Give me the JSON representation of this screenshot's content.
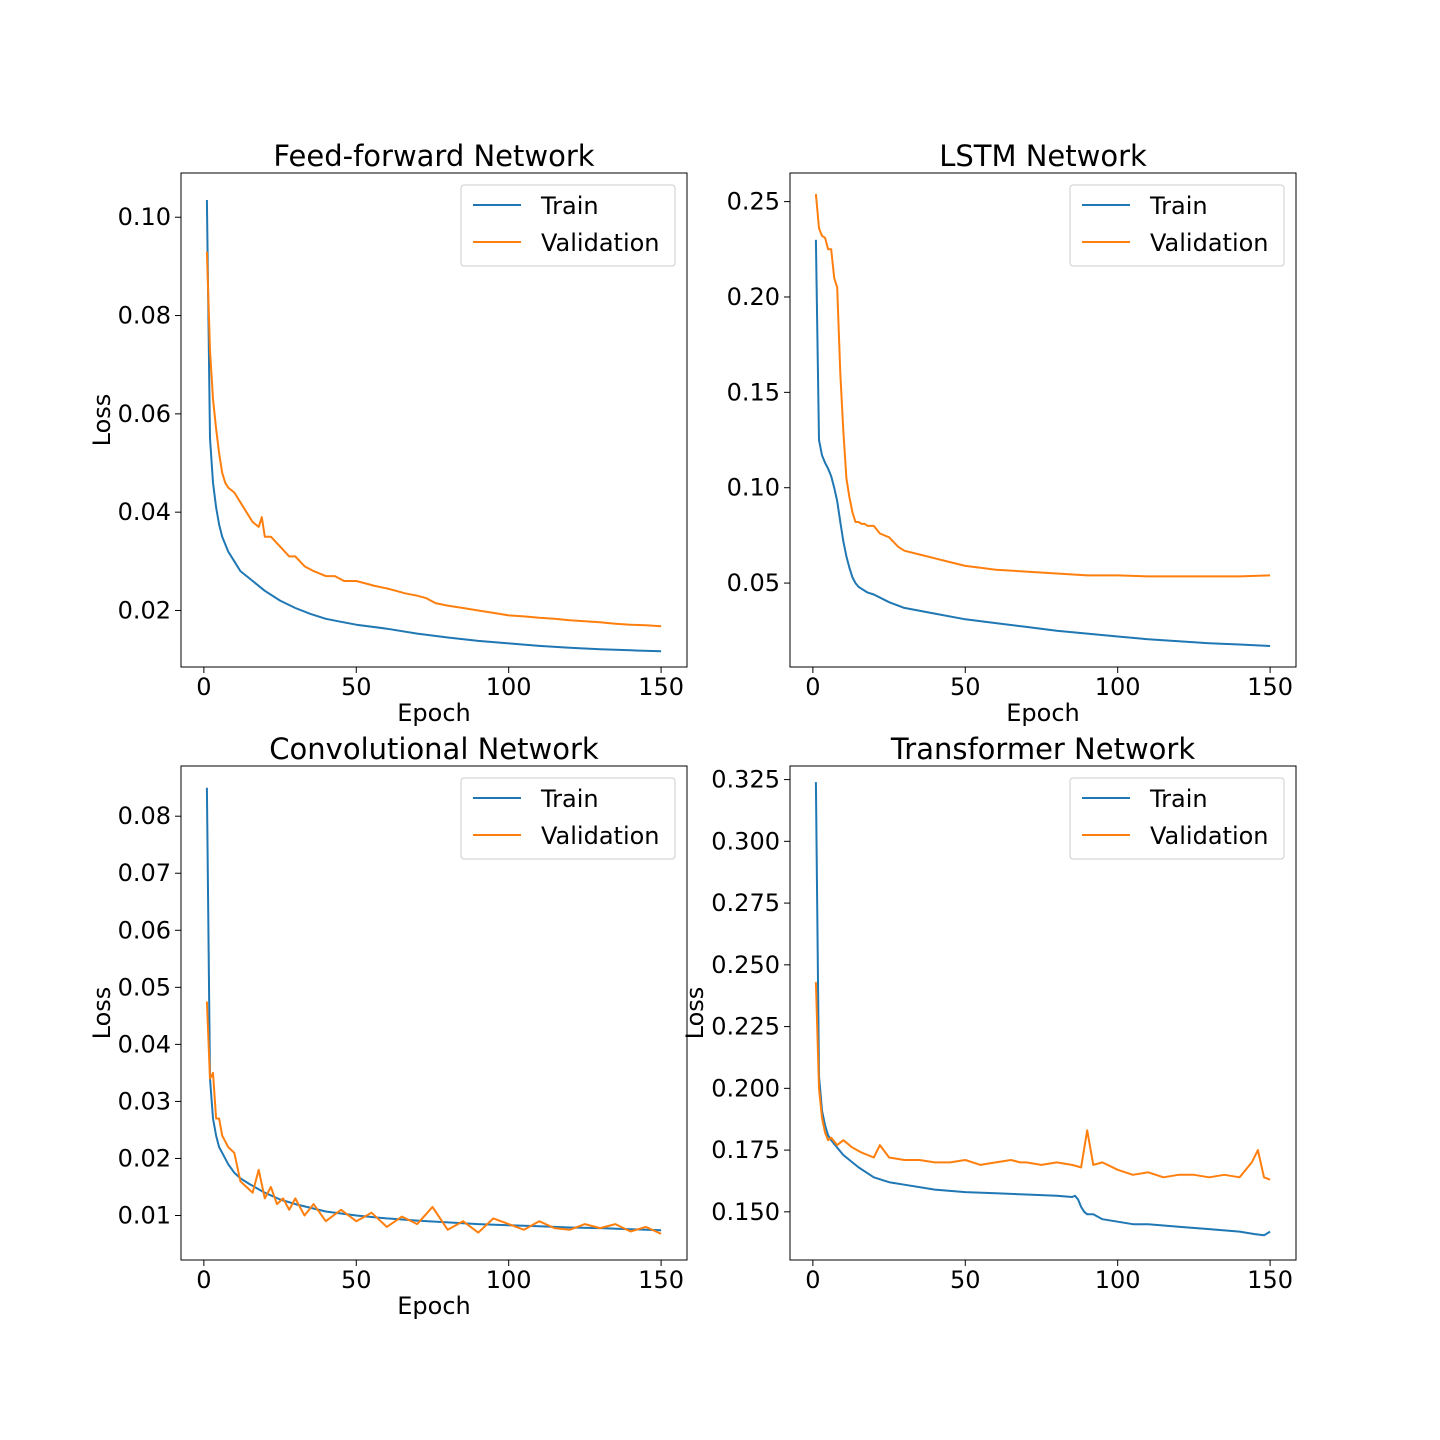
{
  "chart_data": [
    {
      "type": "line",
      "title": "Feed-forward Network",
      "xlabel": "Epoch",
      "ylabel": "Loss",
      "xlim": [
        -7.5,
        158.5
      ],
      "ylim": [
        0.0085,
        0.109
      ],
      "xticks": [
        0,
        50,
        100,
        150
      ],
      "xtick_labels": [
        "0",
        "50",
        "100",
        "150"
      ],
      "yticks": [
        0.02,
        0.04,
        0.06,
        0.08,
        0.1
      ],
      "ytick_labels": [
        "0.02",
        "0.04",
        "0.06",
        "0.08",
        "0.10"
      ],
      "legend_position": "upper right",
      "series": [
        {
          "name": "Train",
          "color": "#1f77b4",
          "x": [
            1,
            2,
            3,
            4,
            5,
            6,
            8,
            10,
            12,
            15,
            20,
            25,
            30,
            35,
            40,
            45,
            50,
            60,
            70,
            80,
            90,
            100,
            110,
            120,
            130,
            140,
            150
          ],
          "y": [
            0.1035,
            0.055,
            0.046,
            0.041,
            0.0375,
            0.035,
            0.032,
            0.03,
            0.028,
            0.0265,
            0.024,
            0.022,
            0.0205,
            0.0193,
            0.0183,
            0.0177,
            0.0171,
            0.0163,
            0.0153,
            0.0145,
            0.0138,
            0.0133,
            0.0128,
            0.0124,
            0.0121,
            0.0119,
            0.0117
          ]
        },
        {
          "name": "Validation",
          "color": "#ff7f0e",
          "x": [
            1,
            2,
            3,
            4,
            5,
            6,
            7,
            8,
            10,
            12,
            14,
            16,
            18,
            19,
            20,
            22,
            25,
            28,
            30,
            33,
            36,
            40,
            43,
            46,
            50,
            53,
            56,
            60,
            63,
            66,
            70,
            73,
            76,
            80,
            85,
            90,
            95,
            100,
            105,
            110,
            115,
            120,
            125,
            130,
            135,
            140,
            145,
            150
          ],
          "y": [
            0.093,
            0.073,
            0.063,
            0.057,
            0.052,
            0.048,
            0.046,
            0.045,
            0.044,
            0.042,
            0.04,
            0.038,
            0.037,
            0.039,
            0.035,
            0.035,
            0.033,
            0.031,
            0.031,
            0.029,
            0.028,
            0.027,
            0.027,
            0.026,
            0.026,
            0.0255,
            0.025,
            0.0245,
            0.024,
            0.0235,
            0.023,
            0.0225,
            0.0215,
            0.021,
            0.0205,
            0.02,
            0.0195,
            0.019,
            0.0188,
            0.0185,
            0.0183,
            0.018,
            0.0178,
            0.0176,
            0.0173,
            0.0171,
            0.017,
            0.0168
          ]
        }
      ]
    },
    {
      "type": "line",
      "title": "LSTM Network",
      "xlabel": "Epoch",
      "ylabel": "",
      "xlim": [
        -7.5,
        158.5
      ],
      "ylim": [
        0.006,
        0.265
      ],
      "xticks": [
        0,
        50,
        100,
        150
      ],
      "xtick_labels": [
        "0",
        "50",
        "100",
        "150"
      ],
      "yticks": [
        0.05,
        0.1,
        0.15,
        0.2,
        0.25
      ],
      "ytick_labels": [
        "0.05",
        "0.10",
        "0.15",
        "0.20",
        "0.25"
      ],
      "legend_position": "upper right",
      "series": [
        {
          "name": "Train",
          "color": "#1f77b4",
          "x": [
            1,
            2,
            3,
            4,
            5,
            6,
            7,
            8,
            9,
            10,
            11,
            12,
            13,
            14,
            15,
            16,
            18,
            20,
            25,
            30,
            40,
            50,
            60,
            70,
            80,
            90,
            100,
            110,
            120,
            130,
            140,
            150
          ],
          "y": [
            0.23,
            0.125,
            0.117,
            0.113,
            0.11,
            0.106,
            0.1,
            0.093,
            0.082,
            0.072,
            0.064,
            0.058,
            0.053,
            0.05,
            0.048,
            0.047,
            0.045,
            0.044,
            0.04,
            0.037,
            0.034,
            0.031,
            0.029,
            0.027,
            0.025,
            0.0235,
            0.022,
            0.0205,
            0.0195,
            0.0185,
            0.0178,
            0.017
          ]
        },
        {
          "name": "Validation",
          "color": "#ff7f0e",
          "x": [
            1,
            2,
            3,
            4,
            5,
            6,
            7,
            8,
            9,
            10,
            11,
            12,
            13,
            14,
            15,
            16,
            17,
            18,
            20,
            22,
            25,
            28,
            30,
            35,
            40,
            45,
            50,
            55,
            60,
            70,
            80,
            90,
            100,
            110,
            120,
            130,
            140,
            150
          ],
          "y": [
            0.254,
            0.236,
            0.232,
            0.231,
            0.225,
            0.225,
            0.21,
            0.205,
            0.16,
            0.13,
            0.105,
            0.095,
            0.087,
            0.082,
            0.082,
            0.081,
            0.081,
            0.08,
            0.08,
            0.076,
            0.074,
            0.069,
            0.067,
            0.065,
            0.063,
            0.061,
            0.059,
            0.058,
            0.057,
            0.056,
            0.055,
            0.054,
            0.054,
            0.0535,
            0.0535,
            0.0535,
            0.0535,
            0.054
          ]
        }
      ]
    },
    {
      "type": "line",
      "title": "Convolutional Network",
      "xlabel": "Epoch",
      "ylabel": "Loss",
      "xlim": [
        -7.5,
        158.5
      ],
      "ylim": [
        0.0022,
        0.0888
      ],
      "xticks": [
        0,
        50,
        100,
        150
      ],
      "xtick_labels": [
        "0",
        "50",
        "100",
        "150"
      ],
      "yticks": [
        0.01,
        0.02,
        0.03,
        0.04,
        0.05,
        0.06,
        0.07,
        0.08
      ],
      "ytick_labels": [
        "0.01",
        "0.02",
        "0.03",
        "0.04",
        "0.05",
        "0.06",
        "0.07",
        "0.08"
      ],
      "legend_position": "upper right",
      "series": [
        {
          "name": "Train",
          "color": "#1f77b4",
          "x": [
            1,
            2,
            3,
            4,
            5,
            6,
            8,
            10,
            12,
            15,
            20,
            25,
            30,
            40,
            50,
            60,
            70,
            80,
            90,
            100,
            110,
            120,
            130,
            140,
            150
          ],
          "y": [
            0.085,
            0.034,
            0.027,
            0.024,
            0.022,
            0.021,
            0.019,
            0.0175,
            0.0165,
            0.0155,
            0.014,
            0.0128,
            0.012,
            0.0107,
            0.01,
            0.0095,
            0.0091,
            0.0088,
            0.0085,
            0.0083,
            0.0081,
            0.0079,
            0.0078,
            0.0076,
            0.0074
          ]
        },
        {
          "name": "Validation",
          "color": "#ff7f0e",
          "x": [
            1,
            2,
            3,
            4,
            5,
            6,
            7,
            8,
            10,
            12,
            14,
            16,
            18,
            20,
            22,
            24,
            26,
            28,
            30,
            33,
            36,
            40,
            45,
            50,
            55,
            60,
            65,
            70,
            75,
            80,
            85,
            90,
            95,
            100,
            105,
            110,
            115,
            120,
            125,
            130,
            135,
            140,
            145,
            150
          ],
          "y": [
            0.0475,
            0.034,
            0.035,
            0.027,
            0.027,
            0.024,
            0.023,
            0.022,
            0.021,
            0.016,
            0.015,
            0.014,
            0.018,
            0.013,
            0.015,
            0.012,
            0.013,
            0.011,
            0.013,
            0.01,
            0.012,
            0.009,
            0.011,
            0.009,
            0.0105,
            0.008,
            0.0098,
            0.0085,
            0.0115,
            0.0075,
            0.009,
            0.007,
            0.0095,
            0.0085,
            0.0075,
            0.009,
            0.0078,
            0.0075,
            0.0085,
            0.0078,
            0.0085,
            0.0072,
            0.008,
            0.0068
          ]
        }
      ]
    },
    {
      "type": "line",
      "title": "Transformer Network",
      "xlabel": "",
      "ylabel": "Loss",
      "xlim": [
        -7.5,
        158.5
      ],
      "ylim": [
        0.1305,
        0.3305
      ],
      "xticks": [
        0,
        50,
        100,
        150
      ],
      "xtick_labels": [
        "0",
        "50",
        "100",
        "150"
      ],
      "yticks": [
        0.15,
        0.175,
        0.2,
        0.225,
        0.25,
        0.275,
        0.3,
        0.325
      ],
      "ytick_labels": [
        "0.150",
        "0.175",
        "0.200",
        "0.225",
        "0.250",
        "0.275",
        "0.300",
        "0.325"
      ],
      "legend_position": "upper right",
      "series": [
        {
          "name": "Train",
          "color": "#1f77b4",
          "x": [
            1,
            2,
            3,
            4,
            5,
            6,
            8,
            10,
            15,
            20,
            25,
            30,
            40,
            50,
            60,
            70,
            80,
            85,
            86,
            87,
            88,
            89,
            90,
            92,
            95,
            100,
            105,
            110,
            120,
            130,
            140,
            145,
            148,
            150
          ],
          "y": [
            0.324,
            0.205,
            0.191,
            0.185,
            0.181,
            0.179,
            0.176,
            0.173,
            0.168,
            0.164,
            0.162,
            0.161,
            0.159,
            0.158,
            0.1575,
            0.157,
            0.1565,
            0.156,
            0.1565,
            0.155,
            0.152,
            0.15,
            0.149,
            0.149,
            0.147,
            0.146,
            0.145,
            0.145,
            0.144,
            0.143,
            0.142,
            0.141,
            0.1405,
            0.142
          ]
        },
        {
          "name": "Validation",
          "color": "#ff7f0e",
          "x": [
            1,
            2,
            3,
            4,
            5,
            6,
            8,
            10,
            13,
            16,
            20,
            22,
            25,
            30,
            35,
            40,
            45,
            50,
            55,
            60,
            65,
            68,
            70,
            75,
            80,
            85,
            88,
            90,
            92,
            95,
            100,
            105,
            110,
            115,
            120,
            125,
            130,
            135,
            140,
            144,
            146,
            148,
            150
          ],
          "y": [
            0.243,
            0.2,
            0.188,
            0.182,
            0.179,
            0.18,
            0.177,
            0.179,
            0.176,
            0.174,
            0.172,
            0.177,
            0.172,
            0.171,
            0.171,
            0.17,
            0.17,
            0.171,
            0.169,
            0.17,
            0.171,
            0.17,
            0.17,
            0.169,
            0.17,
            0.169,
            0.168,
            0.183,
            0.169,
            0.17,
            0.167,
            0.165,
            0.166,
            0.164,
            0.165,
            0.165,
            0.164,
            0.165,
            0.164,
            0.17,
            0.175,
            0.164,
            0.163
          ]
        }
      ]
    }
  ]
}
